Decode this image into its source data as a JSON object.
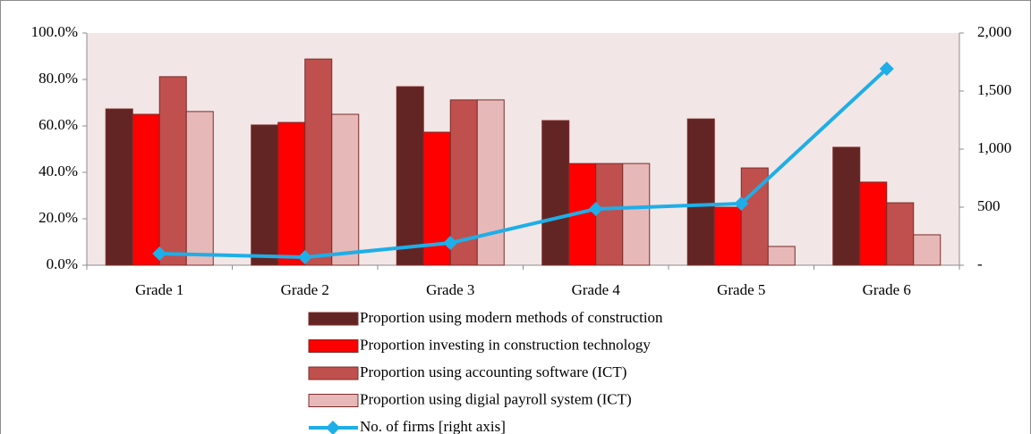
{
  "chart_data": {
    "type": "bar",
    "categories": [
      "Grade 1",
      "Grade 2",
      "Grade 3",
      "Grade 4",
      "Grade 5",
      "Grade 6"
    ],
    "series": [
      {
        "name": "Proportion using modern methods of construction",
        "color": "#632523",
        "values": [
          67.3,
          60.4,
          76.9,
          62.3,
          63.0,
          50.8
        ]
      },
      {
        "name": "Proportion investing in construction technology",
        "color": "#ff0000",
        "values": [
          65.0,
          61.5,
          57.3,
          43.8,
          25.0,
          35.8
        ]
      },
      {
        "name": "Proportion using accounting software (ICT)",
        "color": "#c0504d",
        "values": [
          81.2,
          88.8,
          71.2,
          43.8,
          41.9,
          26.9
        ]
      },
      {
        "name": "Proportion using digial payroll system (ICT)",
        "color": "#e6b9b8",
        "values": [
          66.2,
          65.0,
          71.2,
          43.8,
          8.1,
          13.1
        ]
      },
      {
        "name": "No. of firms [right axis]",
        "color": "#1eaee8",
        "type": "line",
        "axis": "y2",
        "values": [
          100,
          69,
          192,
          485,
          531,
          1692
        ]
      }
    ],
    "ylim": [
      0,
      100
    ],
    "yticks": [
      {
        "value": 0,
        "label": "0.0%"
      },
      {
        "value": 20,
        "label": "20.0%"
      },
      {
        "value": 40,
        "label": "40.0%"
      },
      {
        "value": 60,
        "label": "60.0%"
      },
      {
        "value": 80,
        "label": "80.0%"
      },
      {
        "value": 100,
        "label": "100.0%"
      }
    ],
    "y2lim": [
      0,
      2000
    ],
    "y2ticks": [
      {
        "value": 0,
        "label": "-"
      },
      500,
      {
        "value": 1000,
        "label": "1,000"
      },
      {
        "value": 1500,
        "label": "1,500"
      },
      {
        "value": 2000,
        "label": "2,000"
      }
    ],
    "legend": "bottom"
  }
}
